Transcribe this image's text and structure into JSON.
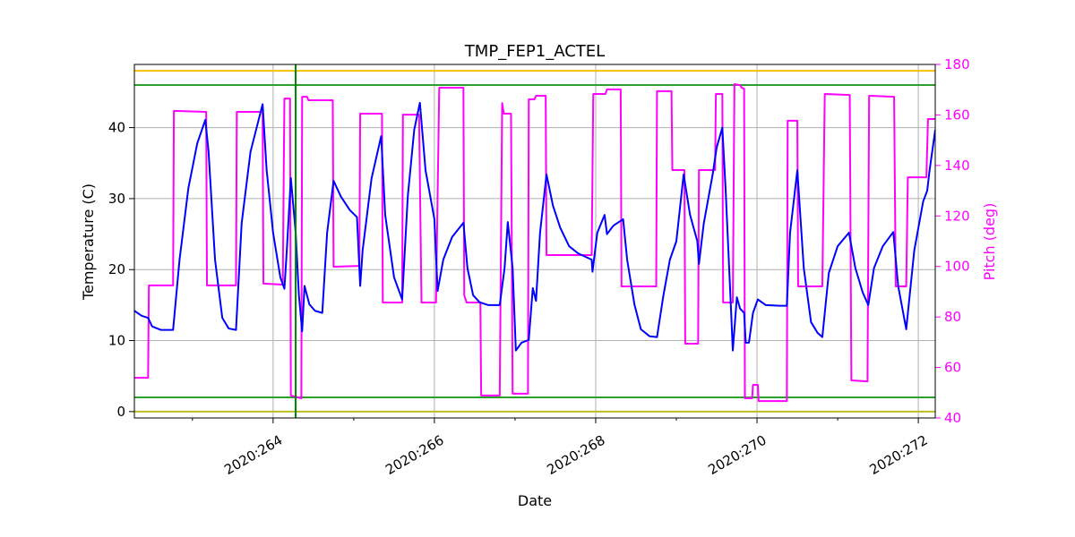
{
  "chart_data": {
    "type": "line",
    "title": "TMP_FEP1_ACTEL",
    "xlabel": "Date",
    "ylabel": "Temperature (C)",
    "y2label": "Pitch (deg)",
    "y2color": "#ff00ff",
    "grid": true,
    "xlim": [
      262.28,
      272.21
    ],
    "xticks": [
      {
        "value": 264,
        "label": "2020:264"
      },
      {
        "value": 266,
        "label": "2020:266"
      },
      {
        "value": 268,
        "label": "2020:268"
      },
      {
        "value": 270,
        "label": "2020:270"
      },
      {
        "value": 272,
        "label": "2020:272"
      }
    ],
    "xminorticks": [
      263,
      265,
      267,
      269,
      271
    ],
    "ylim": [
      -0.9,
      48.9
    ],
    "yticks": [
      0,
      10,
      20,
      30,
      40
    ],
    "y2lim": [
      40,
      180
    ],
    "y2ticks": [
      40,
      60,
      80,
      100,
      120,
      140,
      160,
      180
    ],
    "hlines": [
      {
        "value": 48,
        "color": "#f5c000"
      },
      {
        "value": 46,
        "color": "#2ca02c"
      },
      {
        "value": 2,
        "color": "#2ca02c"
      },
      {
        "value": 0,
        "color": "#bcbd22"
      }
    ],
    "vlines": [
      {
        "value": 264.28,
        "color": "#008000"
      }
    ],
    "series": [
      {
        "color": "#0000ff",
        "x": [
          262.28,
          262.37,
          262.45,
          262.5,
          262.61,
          262.76,
          262.84,
          262.95,
          263.06,
          263.16,
          263.2,
          263.28,
          263.37,
          263.45,
          263.54,
          263.61,
          263.72,
          263.87,
          263.92,
          264.0,
          264.09,
          264.14,
          264.17,
          264.22,
          264.28,
          264.32,
          264.36,
          264.39,
          264.45,
          264.52,
          264.61,
          264.67,
          264.75,
          264.84,
          264.95,
          265.04,
          265.08,
          265.11,
          265.22,
          265.34,
          265.39,
          265.5,
          265.6,
          265.67,
          265.75,
          265.82,
          265.89,
          266.0,
          266.04,
          266.11,
          266.22,
          266.36,
          266.41,
          266.48,
          266.56,
          266.67,
          266.81,
          266.87,
          266.91,
          266.97,
          267.01,
          267.08,
          267.17,
          267.22,
          267.26,
          267.31,
          267.39,
          267.47,
          267.56,
          267.67,
          267.78,
          267.95,
          267.96,
          268.02,
          268.11,
          268.14,
          268.22,
          268.34,
          268.39,
          268.48,
          268.56,
          268.67,
          268.76,
          268.84,
          268.92,
          269.0,
          269.09,
          269.17,
          269.26,
          269.28,
          269.34,
          269.45,
          269.5,
          269.57,
          269.61,
          269.67,
          269.7,
          269.75,
          269.79,
          269.84,
          269.86,
          269.9,
          269.95,
          270.01,
          270.11,
          270.28,
          270.37,
          270.41,
          270.5,
          270.58,
          270.67,
          270.75,
          270.81,
          270.89,
          271.0,
          271.14,
          271.22,
          271.31,
          271.38,
          271.45,
          271.56,
          271.69,
          271.75,
          271.85,
          271.95,
          272.06,
          272.11,
          272.14,
          272.21
        ],
        "values": [
          14.2,
          13.5,
          13.2,
          12.0,
          11.5,
          11.5,
          21.4,
          31.5,
          37.8,
          41.1,
          36.6,
          21.4,
          13.2,
          11.7,
          11.5,
          26.5,
          36.6,
          43.3,
          34,
          25.2,
          18.9,
          17.3,
          22.7,
          32.9,
          25.2,
          16.4,
          11.3,
          17.7,
          15.1,
          14.2,
          13.9,
          25.2,
          32.5,
          30.3,
          28.4,
          27.4,
          17.7,
          22.7,
          32.8,
          38.8,
          27.7,
          18.9,
          15.8,
          30.3,
          39.7,
          43.5,
          34,
          27.1,
          17.0,
          21.4,
          24.6,
          26.6,
          20.2,
          16.4,
          15.4,
          15.0,
          15.0,
          20.2,
          26.7,
          20.2,
          8.6,
          9.7,
          10.1,
          17.4,
          15.6,
          25.2,
          33.4,
          29.0,
          25.9,
          23.3,
          22.3,
          21.4,
          19.7,
          25.2,
          27.7,
          25.0,
          26.2,
          27.1,
          21.4,
          15.1,
          11.6,
          10.6,
          10.5,
          16.4,
          21.4,
          24.0,
          33.4,
          27.7,
          24.0,
          20.8,
          26.5,
          33.4,
          37.2,
          40.0,
          31.5,
          16.4,
          8.6,
          16.1,
          14.5,
          13.9,
          9.7,
          9.7,
          13.9,
          15.8,
          15.0,
          14.9,
          14.9,
          25.2,
          34.0,
          20.2,
          12.6,
          11.1,
          10.5,
          19.5,
          23.3,
          25.2,
          20.2,
          16.8,
          15.0,
          20.2,
          23.3,
          25.3,
          17.7,
          11.6,
          22.7,
          29.6,
          31.1,
          34,
          39.7
        ]
      },
      {
        "color": "#ff00ff",
        "axis": "y2",
        "x": [
          262.28,
          262.45,
          262.46,
          262.76,
          262.77,
          263.17,
          263.18,
          263.54,
          263.55,
          263.87,
          263.88,
          264.12,
          264.14,
          264.21,
          264.22,
          264.35,
          264.36,
          264.42,
          264.44,
          264.74,
          264.75,
          265.07,
          265.08,
          265.35,
          265.36,
          265.6,
          265.61,
          265.81,
          265.84,
          266.02,
          266.06,
          266.36,
          266.37,
          266.4,
          266.57,
          266.58,
          266.81,
          266.84,
          266.86,
          266.95,
          266.97,
          267.16,
          267.17,
          267.24,
          267.26,
          267.38,
          267.39,
          267.95,
          267.97,
          268.12,
          268.14,
          268.31,
          268.32,
          268.75,
          268.76,
          268.94,
          268.95,
          269.1,
          269.11,
          269.27,
          269.28,
          269.48,
          269.49,
          269.57,
          269.58,
          269.7,
          269.72,
          269.79,
          269.81,
          269.84,
          269.85,
          269.94,
          269.95,
          270.01,
          270.02,
          270.37,
          270.38,
          270.5,
          270.51,
          270.81,
          270.84,
          271.15,
          271.17,
          271.37,
          271.39,
          271.7,
          271.72,
          271.85,
          271.87,
          272.1,
          272.12,
          272.21
        ],
        "values": [
          55.9,
          55.9,
          92.5,
          92.5,
          161.6,
          161.2,
          92.5,
          92.5,
          161.2,
          161.2,
          93.2,
          92.8,
          166.5,
          166.5,
          48.9,
          47.8,
          167.2,
          167.2,
          165.8,
          165.8,
          99.9,
          100.2,
          160.5,
          160.5,
          85.7,
          85.7,
          160.1,
          160.1,
          85.7,
          85.7,
          170.8,
          170.8,
          88.6,
          85.7,
          85.7,
          48.9,
          48.9,
          164.7,
          160.5,
          160.5,
          49.6,
          49.6,
          166.2,
          166.2,
          167.6,
          167.6,
          104.5,
          104.5,
          168.3,
          168.3,
          170.1,
          170.1,
          92.1,
          92.1,
          169.4,
          169.4,
          138.2,
          138.2,
          69.4,
          69.4,
          138.2,
          138.2,
          168.3,
          168.3,
          85.7,
          85.7,
          172.2,
          171.8,
          170.8,
          170.4,
          47.8,
          47.8,
          53.1,
          53.1,
          46.7,
          46.7,
          157.7,
          157.7,
          92.1,
          92.1,
          168.3,
          167.9,
          54.9,
          54.5,
          167.6,
          167.2,
          92.1,
          92.1,
          135.3,
          135.3,
          158.4,
          158.4
        ]
      }
    ]
  }
}
